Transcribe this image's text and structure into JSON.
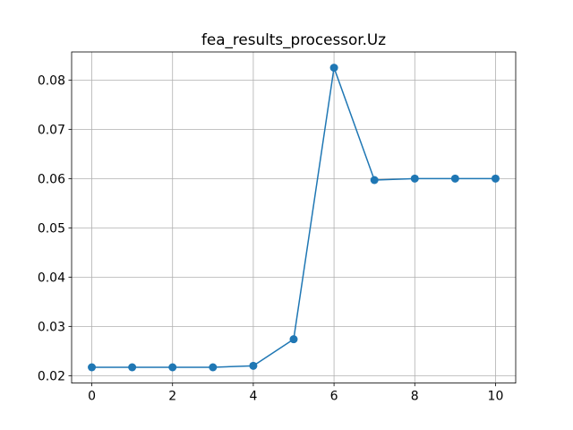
{
  "chart_data": {
    "type": "line",
    "title": "fea_results_processor.Uz",
    "xlabel": "",
    "ylabel": "",
    "x": [
      0,
      1,
      2,
      3,
      4,
      5,
      6,
      7,
      8,
      9,
      10
    ],
    "series": [
      {
        "values": [
          0.0217,
          0.0217,
          0.0217,
          0.0217,
          0.022,
          0.0274,
          0.0825,
          0.0597,
          0.06,
          0.06,
          0.06
        ],
        "color": "#1f77b4",
        "marker": "circle"
      }
    ],
    "xlim": [
      -0.5,
      10.5
    ],
    "ylim": [
      0.0185,
      0.0857
    ],
    "xticks": [
      0,
      2,
      4,
      6,
      8,
      10
    ],
    "xtick_labels": [
      "0",
      "2",
      "4",
      "6",
      "8",
      "10"
    ],
    "yticks": [
      0.02,
      0.03,
      0.04,
      0.05,
      0.06,
      0.07,
      0.08
    ],
    "ytick_labels": [
      "0.02",
      "0.03",
      "0.04",
      "0.05",
      "0.06",
      "0.07",
      "0.08"
    ],
    "grid": true,
    "legend": false
  }
}
